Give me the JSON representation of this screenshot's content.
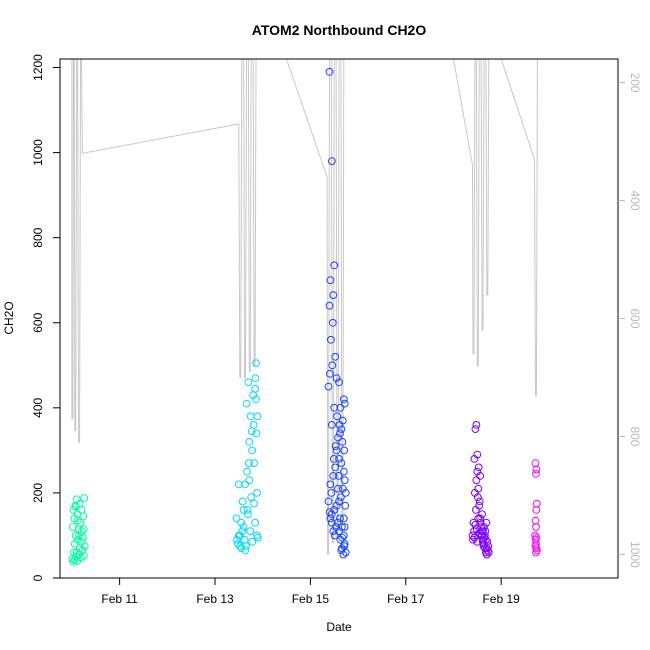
{
  "chart_data": {
    "type": "scatter",
    "title": "ATOM2 Northbound CH2O",
    "xlabel": "Date",
    "ylabel": "CH2O",
    "x_unit": "days in February",
    "xlim": [
      9.75,
      21.45
    ],
    "ylim": [
      0,
      1220
    ],
    "x_ticks": [
      {
        "value": 11,
        "label": "Feb 11"
      },
      {
        "value": 13,
        "label": "Feb 13"
      },
      {
        "value": 15,
        "label": "Feb 15"
      },
      {
        "value": 17,
        "label": "Feb 17"
      },
      {
        "value": 19,
        "label": "Feb 19"
      }
    ],
    "y_ticks": [
      0,
      200,
      400,
      600,
      800,
      1000,
      1200
    ],
    "y2_ticks": [
      200,
      400,
      600,
      800,
      1000
    ],
    "y2lim": [
      1040,
      160
    ],
    "y2_reversed": true,
    "grid": false,
    "legend": "none",
    "colors": {
      "points_scale": [
        "#00ffa0",
        "#00d8ff",
        "#1a44ff",
        "#7a00ff",
        "#ff00ff"
      ],
      "line": "#c8c8c8",
      "right_axis": "#b8b8b8"
    },
    "series": [
      {
        "values": [
          [
            10.01,
            45
          ],
          [
            10.02,
            120
          ],
          [
            10.03,
            160
          ],
          [
            10.04,
            60
          ],
          [
            10.05,
            140
          ],
          [
            10.06,
            80
          ],
          [
            10.07,
            170
          ],
          [
            10.08,
            100
          ],
          [
            10.09,
            50
          ],
          [
            10.1,
            185
          ],
          [
            10.11,
            40
          ],
          [
            10.12,
            150
          ],
          [
            10.13,
            90
          ],
          [
            10.14,
            115
          ],
          [
            10.15,
            55
          ],
          [
            10.16,
            175
          ],
          [
            10.17,
            70
          ],
          [
            10.18,
            130
          ],
          [
            10.19,
            48
          ],
          [
            10.2,
            160
          ],
          [
            10.21,
            110
          ],
          [
            10.22,
            65
          ],
          [
            10.23,
            95
          ],
          [
            10.24,
            145
          ],
          [
            10.25,
            52
          ],
          [
            10.26,
            188
          ],
          [
            10.27,
            75
          ],
          [
            10.03,
            38
          ],
          [
            10.05,
            42
          ],
          [
            10.1,
            60
          ],
          [
            10.15,
            100
          ],
          [
            10.2,
            85
          ],
          [
            10.25,
            115
          ],
          [
            10.08,
            168
          ],
          [
            10.12,
            135
          ]
        ]
      },
      {
        "values": [
          [
            13.45,
            140
          ],
          [
            13.48,
            80
          ],
          [
            13.5,
            220
          ],
          [
            13.52,
            100
          ],
          [
            13.55,
            70
          ],
          [
            13.58,
            180
          ],
          [
            13.6,
            120
          ],
          [
            13.62,
            90
          ],
          [
            13.65,
            75
          ],
          [
            13.66,
            410
          ],
          [
            13.67,
            250
          ],
          [
            13.68,
            160
          ],
          [
            13.7,
            460
          ],
          [
            13.72,
            320
          ],
          [
            13.74,
            110
          ],
          [
            13.75,
            380
          ],
          [
            13.76,
            190
          ],
          [
            13.78,
            85
          ],
          [
            13.8,
            430
          ],
          [
            13.81,
            360
          ],
          [
            13.82,
            270
          ],
          [
            13.84,
            130
          ],
          [
            13.85,
            470
          ],
          [
            13.86,
            505
          ],
          [
            13.87,
            340
          ],
          [
            13.88,
            200
          ],
          [
            13.9,
            95
          ],
          [
            13.5,
            100
          ],
          [
            13.55,
            130
          ],
          [
            13.6,
            160
          ],
          [
            13.64,
            65
          ],
          [
            13.69,
            150
          ],
          [
            13.72,
            230
          ],
          [
            13.78,
            300
          ],
          [
            13.82,
            175
          ],
          [
            13.86,
            420
          ],
          [
            13.88,
            100
          ],
          [
            13.53,
            75
          ],
          [
            13.57,
            110
          ],
          [
            13.63,
            220
          ],
          [
            13.77,
            345
          ],
          [
            13.84,
            445
          ],
          [
            13.89,
            380
          ],
          [
            13.46,
            90
          ],
          [
            13.71,
            270
          ]
        ]
      },
      {
        "values": [
          [
            15.4,
            1190
          ],
          [
            15.45,
            980
          ],
          [
            15.5,
            735
          ],
          [
            15.48,
            665
          ],
          [
            15.42,
            700
          ],
          [
            15.4,
            640
          ],
          [
            15.43,
            560
          ],
          [
            15.47,
            600
          ],
          [
            15.52,
            520
          ],
          [
            15.38,
            450
          ],
          [
            15.41,
            480
          ],
          [
            15.46,
            500
          ],
          [
            15.55,
            470
          ],
          [
            15.6,
            460
          ],
          [
            15.7,
            420
          ],
          [
            15.72,
            410
          ],
          [
            15.68,
            370
          ],
          [
            15.65,
            350
          ],
          [
            15.62,
            340
          ],
          [
            15.58,
            330
          ],
          [
            15.5,
            400
          ],
          [
            15.45,
            360
          ],
          [
            15.55,
            300
          ],
          [
            15.6,
            280
          ],
          [
            15.65,
            270
          ],
          [
            15.7,
            250
          ],
          [
            15.72,
            230
          ],
          [
            15.68,
            210
          ],
          [
            15.64,
            190
          ],
          [
            15.6,
            180
          ],
          [
            15.55,
            170
          ],
          [
            15.5,
            160
          ],
          [
            15.45,
            150
          ],
          [
            15.4,
            155
          ],
          [
            15.38,
            180
          ],
          [
            15.42,
            220
          ],
          [
            15.48,
            240
          ],
          [
            15.52,
            260
          ],
          [
            15.58,
            210
          ],
          [
            15.62,
            140
          ],
          [
            15.66,
            120
          ],
          [
            15.7,
            100
          ],
          [
            15.72,
            80
          ],
          [
            15.74,
            60
          ],
          [
            15.69,
            55
          ],
          [
            15.66,
            70
          ],
          [
            15.63,
            90
          ],
          [
            15.6,
            110
          ],
          [
            15.57,
            130
          ],
          [
            15.54,
            120
          ],
          [
            15.51,
            100
          ],
          [
            15.48,
            110
          ],
          [
            15.45,
            130
          ],
          [
            15.42,
            140
          ],
          [
            15.73,
            170
          ],
          [
            15.74,
            200
          ],
          [
            15.71,
            300
          ],
          [
            15.67,
            320
          ],
          [
            15.56,
            380
          ],
          [
            15.53,
            310
          ],
          [
            15.49,
            280
          ],
          [
            15.44,
            200
          ],
          [
            15.63,
            400
          ],
          [
            15.61,
            360
          ],
          [
            15.59,
            240
          ],
          [
            15.7,
            140
          ],
          [
            15.72,
            120
          ],
          [
            15.67,
            95
          ],
          [
            15.65,
            65
          ],
          [
            15.71,
            75
          ]
        ]
      },
      {
        "values": [
          [
            18.4,
            100
          ],
          [
            18.42,
            130
          ],
          [
            18.44,
            280
          ],
          [
            18.46,
            350
          ],
          [
            18.48,
            360
          ],
          [
            18.5,
            250
          ],
          [
            18.52,
            210
          ],
          [
            18.54,
            170
          ],
          [
            18.56,
            140
          ],
          [
            18.58,
            120
          ],
          [
            18.6,
            100
          ],
          [
            18.62,
            90
          ],
          [
            18.64,
            80
          ],
          [
            18.66,
            70
          ],
          [
            18.68,
            60
          ],
          [
            18.7,
            55
          ],
          [
            18.72,
            65
          ],
          [
            18.45,
            200
          ],
          [
            18.48,
            230
          ],
          [
            18.5,
            290
          ],
          [
            18.53,
            260
          ],
          [
            18.55,
            180
          ],
          [
            18.57,
            130
          ],
          [
            18.59,
            110
          ],
          [
            18.61,
            85
          ],
          [
            18.63,
            75
          ],
          [
            18.65,
            95
          ],
          [
            18.67,
            110
          ],
          [
            18.69,
            130
          ],
          [
            18.71,
            85
          ],
          [
            18.43,
            110
          ],
          [
            18.47,
            160
          ],
          [
            18.51,
            190
          ],
          [
            18.56,
            240
          ],
          [
            18.6,
            150
          ],
          [
            18.64,
            120
          ],
          [
            18.66,
            100
          ],
          [
            18.7,
            70
          ],
          [
            18.41,
            90
          ],
          [
            18.49,
            115
          ],
          [
            18.54,
            105
          ],
          [
            18.58,
            100
          ],
          [
            18.62,
            110
          ],
          [
            18.68,
            90
          ],
          [
            18.73,
            75
          ],
          [
            18.74,
            60
          ],
          [
            18.52,
            140
          ],
          [
            18.46,
            125
          ],
          [
            18.44,
            95
          ],
          [
            18.5,
            85
          ]
        ]
      },
      {
        "values": [
          [
            19.72,
            270
          ],
          [
            19.74,
            255
          ],
          [
            19.73,
            245
          ],
          [
            19.75,
            175
          ],
          [
            19.74,
            160
          ],
          [
            19.72,
            135
          ],
          [
            19.73,
            120
          ],
          [
            19.71,
            100
          ],
          [
            19.72,
            90
          ],
          [
            19.73,
            80
          ],
          [
            19.74,
            70
          ],
          [
            19.75,
            65
          ],
          [
            19.73,
            60
          ],
          [
            19.72,
            75
          ],
          [
            19.74,
            95
          ]
        ]
      }
    ],
    "line_series": {
      "axis": "right",
      "values": [
        [
          10.0,
          160
        ],
        [
          10.0,
          770
        ],
        [
          10.02,
          770
        ],
        [
          10.03,
          160
        ],
        [
          10.05,
          160
        ],
        [
          10.06,
          790
        ],
        [
          10.08,
          790
        ],
        [
          10.1,
          160
        ],
        [
          10.12,
          160
        ],
        [
          10.14,
          810
        ],
        [
          10.16,
          810
        ],
        [
          10.18,
          160
        ],
        [
          10.2,
          160
        ],
        [
          10.22,
          320
        ],
        [
          13.5,
          270
        ],
        [
          13.52,
          700
        ],
        [
          13.54,
          700
        ],
        [
          13.56,
          160
        ],
        [
          13.6,
          160
        ],
        [
          13.62,
          700
        ],
        [
          13.64,
          700
        ],
        [
          13.66,
          160
        ],
        [
          13.7,
          160
        ],
        [
          13.72,
          690
        ],
        [
          13.74,
          690
        ],
        [
          13.76,
          160
        ],
        [
          13.8,
          160
        ],
        [
          13.82,
          680
        ],
        [
          13.84,
          680
        ],
        [
          13.86,
          160
        ],
        [
          14.5,
          160
        ],
        [
          15.35,
          360
        ],
        [
          15.36,
          1000
        ],
        [
          15.38,
          1000
        ],
        [
          15.4,
          160
        ],
        [
          15.44,
          160
        ],
        [
          15.46,
          980
        ],
        [
          15.48,
          980
        ],
        [
          15.5,
          160
        ],
        [
          15.54,
          160
        ],
        [
          15.56,
          970
        ],
        [
          15.58,
          970
        ],
        [
          15.6,
          160
        ],
        [
          15.64,
          160
        ],
        [
          15.66,
          950
        ],
        [
          15.68,
          950
        ],
        [
          15.7,
          160
        ],
        [
          18.0,
          160
        ],
        [
          18.4,
          340
        ],
        [
          18.41,
          660
        ],
        [
          18.43,
          660
        ],
        [
          18.45,
          160
        ],
        [
          18.48,
          160
        ],
        [
          18.5,
          680
        ],
        [
          18.52,
          680
        ],
        [
          18.54,
          160
        ],
        [
          18.58,
          160
        ],
        [
          18.6,
          620
        ],
        [
          18.62,
          620
        ],
        [
          18.64,
          160
        ],
        [
          18.68,
          160
        ],
        [
          18.7,
          560
        ],
        [
          18.72,
          560
        ],
        [
          18.74,
          160
        ],
        [
          19.0,
          160
        ],
        [
          19.7,
          330
        ],
        [
          19.72,
          730
        ],
        [
          19.74,
          730
        ],
        [
          19.76,
          160
        ]
      ]
    }
  }
}
